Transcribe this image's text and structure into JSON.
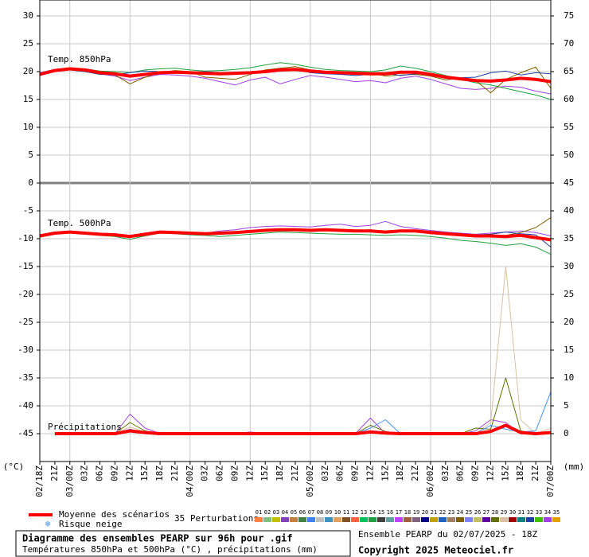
{
  "chart_data": {
    "type": "line",
    "x": [
      "02/18Z",
      "21Z",
      "03/00Z",
      "03Z",
      "06Z",
      "09Z",
      "12Z",
      "15Z",
      "18Z",
      "21Z",
      "04/00Z",
      "03Z",
      "06Z",
      "09Z",
      "12Z",
      "15Z",
      "18Z",
      "21Z",
      "05/00Z",
      "03Z",
      "06Z",
      "09Z",
      "12Z",
      "15Z",
      "18Z",
      "21Z",
      "06/00Z",
      "03Z",
      "06Z",
      "09Z",
      "12Z",
      "15Z",
      "18Z",
      "21Z",
      "07/00Z"
    ],
    "ylim": [
      -50,
      33
    ],
    "yticks": [
      30,
      25,
      20,
      15,
      10,
      5,
      0,
      -5,
      -10,
      -15,
      -20,
      -25,
      -30,
      -35,
      -40,
      -45
    ],
    "y2lim": [
      -5,
      78
    ],
    "y2ticks": [
      75,
      70,
      65,
      60,
      55,
      50,
      45,
      40,
      35,
      30,
      25,
      20,
      15,
      10,
      5,
      0
    ],
    "grid": true,
    "y_unit": "(°C)",
    "y2_unit": "(mm)",
    "panel_labels": [
      "Temp. 850hPa",
      "Temp. 500hPa",
      "Précipitations"
    ],
    "series": [
      {
        "name": "34",
        "color": "#a040e0",
        "values": [
          19.8,
          20.4,
          20.6,
          20.2,
          19.6,
          19.2,
          18.4,
          19.0,
          19.5,
          19.4,
          19.2,
          18.8,
          18.2,
          17.6,
          18.5,
          19.0,
          17.8,
          18.6,
          19.3,
          19.0,
          18.6,
          18.2,
          18.4,
          18.0,
          18.8,
          19.2,
          18.6,
          17.8,
          17.0,
          16.8,
          17.0,
          17.4,
          17.2,
          16.5,
          16.0
        ]
      },
      {
        "name": "14",
        "color": "#20a040",
        "values": [
          19.4,
          20.0,
          20.4,
          20.5,
          20.1,
          20.0,
          19.8,
          20.3,
          20.5,
          20.6,
          20.3,
          20.1,
          20.2,
          20.4,
          20.7,
          21.2,
          21.6,
          21.3,
          20.8,
          20.4,
          20.2,
          20.1,
          20.0,
          20.3,
          21.0,
          20.6,
          20.0,
          19.3,
          18.6,
          18.0,
          17.6,
          17.0,
          16.4,
          15.8,
          15.0
        ]
      },
      {
        "name": "24",
        "color": "#806000",
        "values": [
          19.6,
          20.3,
          20.6,
          20.2,
          19.7,
          19.4,
          17.8,
          19.0,
          19.8,
          20.2,
          20.0,
          19.0,
          18.8,
          18.6,
          19.5,
          20.3,
          20.6,
          20.9,
          20.3,
          20.0,
          19.6,
          19.8,
          19.8,
          19.2,
          19.4,
          19.5,
          19.2,
          18.5,
          18.8,
          18.4,
          16.2,
          18.6,
          19.8,
          20.8,
          17.0
        ]
      },
      {
        "name": "32",
        "color": "#2040a0",
        "values": [
          19.5,
          20.1,
          20.3,
          20.0,
          19.5,
          19.4,
          19.8,
          20.1,
          20.0,
          19.8,
          19.9,
          20.0,
          19.8,
          19.9,
          20.0,
          19.8,
          20.1,
          20.5,
          19.8,
          19.6,
          19.5,
          19.3,
          19.5,
          19.7,
          19.3,
          19.6,
          19.5,
          19.2,
          18.9,
          19.0,
          19.8,
          20.1,
          19.4,
          19.8,
          19.6
        ]
      },
      {
        "name": "34",
        "color": "#a040e0",
        "values": [
          -9.3,
          -8.8,
          -8.7,
          -8.9,
          -9.0,
          -9.1,
          -9.4,
          -9.0,
          -8.7,
          -8.8,
          -8.9,
          -9.0,
          -8.6,
          -8.4,
          -8.0,
          -7.8,
          -7.7,
          -7.8,
          -7.9,
          -7.6,
          -7.4,
          -7.8,
          -7.6,
          -6.9,
          -7.8,
          -8.2,
          -8.5,
          -8.8,
          -9.0,
          -9.2,
          -9.0,
          -8.8,
          -8.6,
          -8.9,
          -9.5
        ]
      },
      {
        "name": "14",
        "color": "#20a040",
        "values": [
          -9.6,
          -9.1,
          -8.9,
          -9.1,
          -9.4,
          -9.6,
          -10.1,
          -9.5,
          -9.0,
          -9.1,
          -9.3,
          -9.4,
          -9.6,
          -9.4,
          -9.2,
          -9.0,
          -8.8,
          -8.9,
          -9.0,
          -9.1,
          -9.2,
          -9.2,
          -9.3,
          -9.4,
          -9.3,
          -9.4,
          -9.6,
          -9.9,
          -10.3,
          -10.5,
          -10.8,
          -11.2,
          -10.9,
          -11.5,
          -12.8
        ]
      },
      {
        "name": "24",
        "color": "#806000",
        "values": [
          -9.5,
          -9.0,
          -8.8,
          -9.0,
          -9.2,
          -9.3,
          -9.7,
          -9.3,
          -8.9,
          -9.0,
          -9.1,
          -9.2,
          -9.1,
          -9.0,
          -8.9,
          -8.6,
          -8.5,
          -8.5,
          -8.6,
          -8.5,
          -8.6,
          -8.7,
          -8.7,
          -8.9,
          -8.7,
          -8.8,
          -9.0,
          -9.2,
          -9.4,
          -9.7,
          -9.6,
          -9.4,
          -8.9,
          -8.0,
          -6.2
        ]
      },
      {
        "name": "32",
        "color": "#2040a0",
        "values": [
          -9.4,
          -8.9,
          -8.8,
          -9.0,
          -9.3,
          -9.4,
          -9.5,
          -9.1,
          -8.8,
          -8.9,
          -9.0,
          -9.0,
          -8.9,
          -8.8,
          -8.6,
          -8.4,
          -8.3,
          -8.2,
          -8.4,
          -8.3,
          -8.4,
          -8.5,
          -8.4,
          -8.7,
          -8.5,
          -8.5,
          -8.7,
          -8.9,
          -9.1,
          -9.3,
          -9.2,
          -8.8,
          -9.1,
          -9.3,
          -11.5
        ]
      },
      {
        "name": "34",
        "color": "#a040e0",
        "axis": "y2",
        "values": [
          null,
          0,
          0,
          0,
          0,
          0,
          3.5,
          1.0,
          0,
          0,
          0,
          0,
          0,
          0,
          0.3,
          0,
          0,
          0,
          0,
          0,
          0,
          0,
          2.8,
          0,
          0,
          0,
          0,
          0,
          0,
          0.5,
          2.5,
          2.0,
          0,
          0,
          0
        ]
      },
      {
        "name": "29",
        "color": "#d8c0a0",
        "axis": "y2",
        "values": [
          null,
          0,
          0,
          0,
          0,
          0,
          1.2,
          0.3,
          0,
          0,
          0,
          0,
          0,
          0,
          0,
          0,
          0,
          0,
          0,
          0,
          0,
          0,
          0.5,
          0,
          0,
          0,
          0,
          0,
          0,
          0,
          2.0,
          30.0,
          2.5,
          0,
          1.0
        ]
      },
      {
        "name": "28",
        "color": "#607000",
        "axis": "y2",
        "values": [
          null,
          0,
          0,
          0,
          0,
          0,
          2.0,
          0.5,
          0,
          0,
          0,
          0,
          0,
          0,
          0,
          0,
          0,
          0,
          0,
          0,
          0,
          0,
          1.5,
          0.4,
          0,
          0,
          0,
          0,
          0,
          1.0,
          0.8,
          10.0,
          0.5,
          0,
          0
        ]
      },
      {
        "name": "32",
        "color": "#4090ff",
        "axis": "y2",
        "values": [
          null,
          0,
          0,
          0,
          0,
          0,
          0.8,
          0.2,
          0,
          0,
          0,
          0,
          0,
          0,
          0,
          0,
          0,
          0,
          0,
          0,
          0,
          0,
          1.0,
          2.5,
          0,
          0,
          0,
          0,
          0,
          0,
          1.5,
          0.8,
          0.3,
          0.5,
          7.5
        ]
      },
      {
        "name": "Moyenne des scénarios",
        "color": "#ff0000",
        "values": [
          19.5,
          20.2,
          20.5,
          20.3,
          19.8,
          19.6,
          19.2,
          19.5,
          19.8,
          19.9,
          19.8,
          19.7,
          19.6,
          19.7,
          19.8,
          20.0,
          20.3,
          20.4,
          20.1,
          19.9,
          19.8,
          19.7,
          19.6,
          19.6,
          19.9,
          19.9,
          19.5,
          19.0,
          18.7,
          18.4,
          18.3,
          18.5,
          18.8,
          18.6,
          18.2
        ]
      },
      {
        "name": "Moyenne des scénarios",
        "color": "#ff0000",
        "values": [
          -9.5,
          -9.0,
          -8.8,
          -9.0,
          -9.2,
          -9.3,
          -9.6,
          -9.2,
          -8.8,
          -8.9,
          -9.0,
          -9.1,
          -9.0,
          -8.9,
          -8.7,
          -8.5,
          -8.4,
          -8.4,
          -8.5,
          -8.4,
          -8.5,
          -8.6,
          -8.6,
          -8.8,
          -8.6,
          -8.6,
          -8.9,
          -9.1,
          -9.3,
          -9.5,
          -9.5,
          -9.6,
          -9.4,
          -9.8,
          -10.2
        ]
      },
      {
        "name": "Moyenne des scénarios",
        "color": "#ff0000",
        "axis": "y2",
        "values": [
          null,
          0,
          0,
          0,
          0,
          0,
          0.5,
          0.2,
          0,
          0,
          0,
          0,
          0,
          0,
          0,
          0,
          0,
          0,
          0,
          0,
          0,
          0,
          0.3,
          0.1,
          0,
          0,
          0,
          0,
          0,
          0,
          0.4,
          1.5,
          0.2,
          0,
          0.2
        ]
      }
    ],
    "snow_label": "Risque neige",
    "perturbations_label": "35 Perturbations",
    "perturbations": [
      {
        "name": "01",
        "color": "#ff8040"
      },
      {
        "name": "02",
        "color": "#80c080"
      },
      {
        "name": "03",
        "color": "#c0c000"
      },
      {
        "name": "04",
        "color": "#8040c0"
      },
      {
        "name": "05",
        "color": "#c08040"
      },
      {
        "name": "06",
        "color": "#408040"
      },
      {
        "name": "07",
        "color": "#4080ff"
      },
      {
        "name": "08",
        "color": "#c0c0c0"
      },
      {
        "name": "09",
        "color": "#4090c0"
      },
      {
        "name": "10",
        "color": "#e0a060"
      },
      {
        "name": "11",
        "color": "#805020"
      },
      {
        "name": "12",
        "color": "#ff6040"
      },
      {
        "name": "13",
        "color": "#00c060"
      },
      {
        "name": "14",
        "color": "#20a040"
      },
      {
        "name": "15",
        "color": "#404040"
      },
      {
        "name": "16",
        "color": "#60a0a0"
      },
      {
        "name": "17",
        "color": "#c040ff"
      },
      {
        "name": "18",
        "color": "#a06040"
      },
      {
        "name": "19",
        "color": "#806080"
      },
      {
        "name": "20",
        "color": "#000080"
      },
      {
        "name": "21",
        "color": "#c0a000"
      },
      {
        "name": "22",
        "color": "#2060c0"
      },
      {
        "name": "23",
        "color": "#a08060"
      },
      {
        "name": "24",
        "color": "#806000"
      },
      {
        "name": "25",
        "color": "#8080ff"
      },
      {
        "name": "26",
        "color": "#c0c060"
      },
      {
        "name": "27",
        "color": "#6000a0"
      },
      {
        "name": "28",
        "color": "#607000"
      },
      {
        "name": "29",
        "color": "#d8c0a0"
      },
      {
        "name": "30",
        "color": "#a00000"
      },
      {
        "name": "31",
        "color": "#008080"
      },
      {
        "name": "32",
        "color": "#2040a0"
      },
      {
        "name": "33",
        "color": "#40c000"
      },
      {
        "name": "34",
        "color": "#a040e0"
      },
      {
        "name": "35",
        "color": "#e0a000"
      }
    ]
  },
  "footer": {
    "title": "Diagramme des ensembles PEARP sur 96h pour .gif",
    "subtitle": "Températures 850hPa et 500hPa (°C) , précipitations (mm)",
    "run": "Ensemble PEARP du 02/07/2025 - 18Z",
    "copyright": "Copyright 2025 Meteociel.fr"
  }
}
